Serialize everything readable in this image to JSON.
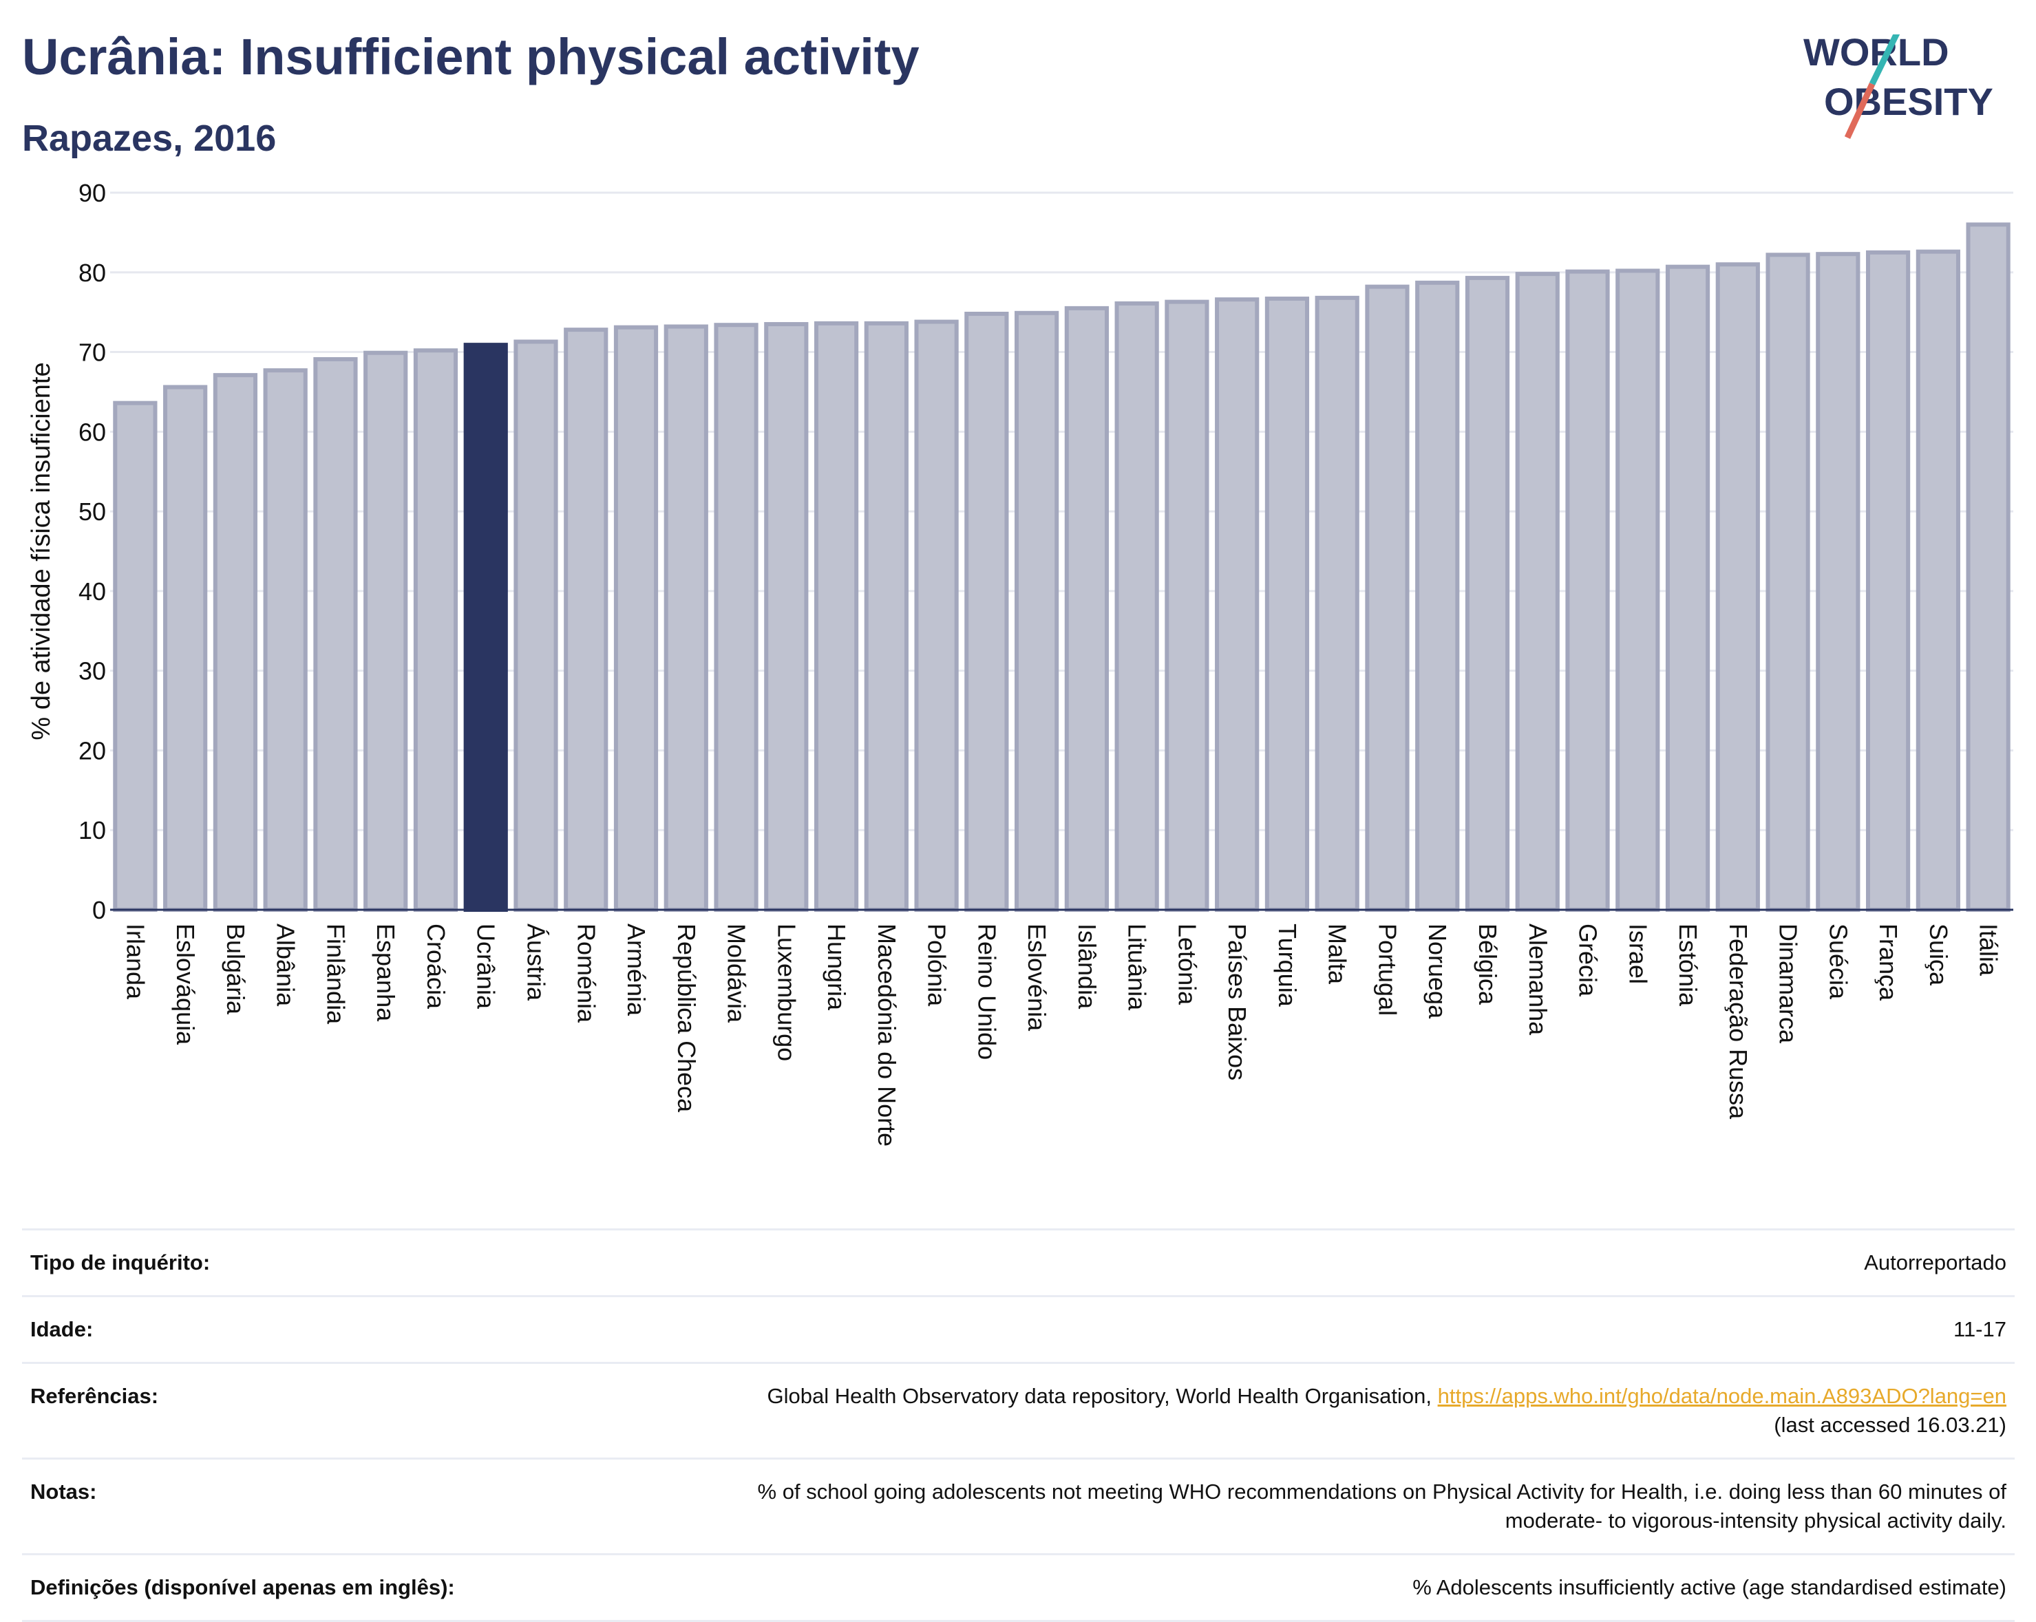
{
  "title": "Ucrânia: Insufficient physical activity",
  "subtitle": "Rapazes, 2016",
  "logo": {
    "line1": "WORLD",
    "line2": "OBESITY"
  },
  "colors": {
    "bar_default": "#bfc2d0",
    "bar_default_border": "#a3a7bd",
    "bar_highlight": "#2a3561",
    "axis": "#2a3561",
    "grid": "#e6e8ef",
    "logo_teal": "#35b5b3",
    "logo_red": "#e06a5a",
    "link": "#e7a92a"
  },
  "chart_data": {
    "type": "bar",
    "title": "Ucrânia: Insufficient physical activity",
    "subtitle": "Rapazes, 2016",
    "xlabel": "",
    "ylabel": "% de atividade física insuficiente",
    "ylim": [
      0,
      90
    ],
    "yticks": [
      0,
      10,
      20,
      30,
      40,
      50,
      60,
      70,
      80,
      90
    ],
    "grid": true,
    "highlight": "Ucrânia",
    "categories": [
      "Irlanda",
      "Eslováquia",
      "Bulgária",
      "Albânia",
      "Finlândia",
      "Espanha",
      "Croácia",
      "Ucrânia",
      "Áustria",
      "Roménia",
      "Arménia",
      "República Checa",
      "Moldávia",
      "Luxemburgo",
      "Hungria",
      "Macedónia do Norte",
      "Polónia",
      "Reino Unido",
      "Eslovénia",
      "Islândia",
      "Lituânia",
      "Letónia",
      "Países Baixos",
      "Turquia",
      "Malta",
      "Portugal",
      "Noruega",
      "Bélgica",
      "Alemanha",
      "Grécia",
      "Israel",
      "Estónia",
      "Federação Russa",
      "Dinamarca",
      "Suécia",
      "França",
      "Suiça",
      "Itália"
    ],
    "values": [
      63.6,
      65.6,
      67.1,
      67.7,
      69.1,
      69.9,
      70.2,
      70.9,
      71.3,
      72.8,
      73.1,
      73.2,
      73.4,
      73.5,
      73.6,
      73.6,
      73.8,
      74.8,
      74.9,
      75.5,
      76.1,
      76.3,
      76.6,
      76.7,
      76.8,
      78.2,
      78.7,
      79.3,
      79.8,
      80.1,
      80.2,
      80.7,
      81.0,
      82.2,
      82.3,
      82.5,
      82.6,
      86.0
    ]
  },
  "info": {
    "survey_type_label": "Tipo de inquérito:",
    "survey_type_value": "Autorreportado",
    "age_label": "Idade:",
    "age_value": "11-17",
    "references_label": "Referências:",
    "references_text": "Global Health Observatory data repository, World Health Organisation,",
    "references_link": "https://apps.who.int/gho/data/node.main.A893ADO?lang=en",
    "references_accessed": "(last accessed 16.03.21)",
    "notes_label": "Notas:",
    "notes_line1": "% of school going adolescents not meeting WHO recommendations on Physical Activity for Health, i.e. doing less than 60 minutes of",
    "notes_line2": "moderate- to vigorous-intensity physical activity daily.",
    "definitions_label": "Definições (disponível apenas em inglês):",
    "definitions_value": "% Adolescents insufficiently active (age standardised estimate)"
  }
}
